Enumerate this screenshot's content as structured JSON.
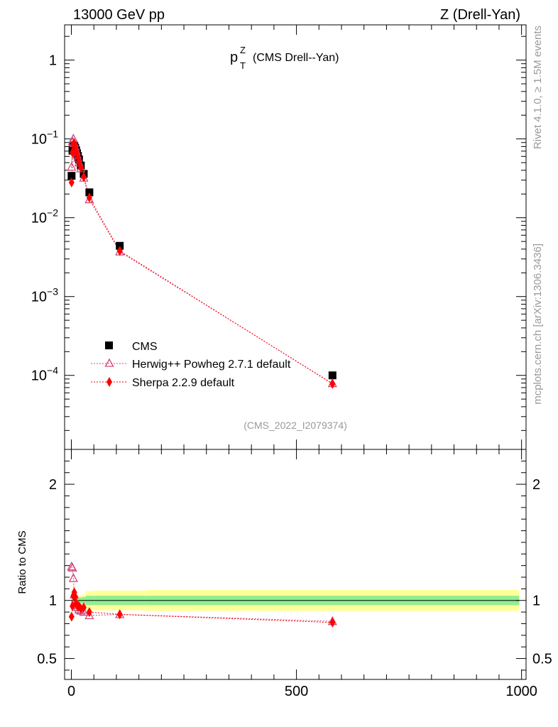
{
  "header": {
    "left": "13000 GeV pp",
    "right": "Z (Drell-Yan)"
  },
  "side_labels": {
    "rivet": "Rivet 4.1.0, ≥ 1.5M events",
    "source": "mcplots.cern.ch [arXiv:1306.3436]"
  },
  "chart_data": [
    {
      "type": "line",
      "panel": "main",
      "title_main": "p",
      "title_sup": "Z",
      "title_sub": "T",
      "title_rest": "(CMS Drell--Yan)",
      "watermark": "(CMS_2022_I2079374)",
      "yscale": "log",
      "ylim": [
        1.15e-05,
        2.8
      ],
      "xlim": [
        -15,
        1010
      ],
      "ytick_labels": [
        {
          "value": 1,
          "base": "1",
          "exp": ""
        },
        {
          "value": 0.1,
          "base": "10",
          "exp": "−1"
        },
        {
          "value": 0.01,
          "base": "10",
          "exp": "−2"
        },
        {
          "value": 0.001,
          "base": "10",
          "exp": "−3"
        },
        {
          "value": 0.0001,
          "base": "10",
          "exp": "−4"
        }
      ],
      "legend": {
        "placement": "lower-left",
        "entries": [
          "CMS",
          "Herwig++ Powheg 2.7.1 default",
          "Sherpa 2.2.9 default"
        ]
      },
      "series": [
        {
          "name": "CMS",
          "color": "#000000",
          "marker": "square",
          "x": [
            0.5,
            2.5,
            4.5,
            6.5,
            8.5,
            10.5,
            12.5,
            14.5,
            17.0,
            21.0,
            27.5,
            40.0,
            107.5,
            580.0
          ],
          "y": [
            0.034,
            0.071,
            0.083,
            0.082,
            0.077,
            0.072,
            0.066,
            0.061,
            0.055,
            0.046,
            0.036,
            0.021,
            0.0044,
            0.0001
          ]
        },
        {
          "name": "Herwig++ Powheg 2.7.1 default",
          "color": "#d0457a",
          "marker": "triangle-open",
          "x": [
            0.5,
            2.5,
            4.5,
            6.5,
            8.5,
            10.5,
            12.5,
            14.5,
            17.0,
            21.0,
            27.5,
            40.0,
            107.5,
            580.0
          ],
          "y": [
            0.044,
            0.092,
            0.1,
            0.088,
            0.078,
            0.07,
            0.063,
            0.057,
            0.05,
            0.042,
            0.032,
            0.017,
            0.0037,
            7.9e-05
          ]
        },
        {
          "name": "Sherpa 2.2.9 default",
          "color": "#ff0000",
          "marker": "diamond-filled",
          "x": [
            0.5,
            2.5,
            4.5,
            6.5,
            8.5,
            10.5,
            12.5,
            14.5,
            17.0,
            21.0,
            27.5,
            40.0,
            107.5,
            580.0
          ],
          "y": [
            0.028,
            0.067,
            0.086,
            0.087,
            0.08,
            0.07,
            0.063,
            0.058,
            0.052,
            0.043,
            0.033,
            0.018,
            0.0038,
            7.8e-05
          ]
        }
      ]
    },
    {
      "type": "line",
      "panel": "ratio",
      "ylabel": "Ratio to CMS",
      "ylim": [
        0.32,
        2.3
      ],
      "xlim": [
        -15,
        1010
      ],
      "yticks": [
        0.5,
        1,
        2
      ],
      "ytick_labels": [
        "0.5",
        "1",
        "2"
      ],
      "xticks": [
        0,
        500,
        1000
      ],
      "xtick_labels": [
        "0",
        "500",
        "1000"
      ],
      "reference": 1,
      "bands": {
        "edges": [
          0,
          1,
          3,
          5,
          7,
          9,
          11,
          13,
          15,
          18,
          24,
          32,
          50,
          165,
          995
        ],
        "inner": [
          0.03,
          0.025,
          0.02,
          0.02,
          0.02,
          0.02,
          0.02,
          0.02,
          0.025,
          0.025,
          0.03,
          0.04,
          0.04,
          0.04
        ],
        "outer": [
          0.04,
          0.035,
          0.03,
          0.03,
          0.03,
          0.03,
          0.035,
          0.035,
          0.04,
          0.045,
          0.05,
          0.08,
          0.085,
          0.09
        ],
        "inner_color": "#90ee90",
        "outer_color": "#ffff99"
      },
      "series": [
        {
          "name": "Herwig++ Powheg 2.7.1 default",
          "color": "#d0457a",
          "marker": "triangle-open",
          "x": [
            0.5,
            2.5,
            4.5,
            6.5,
            8.5,
            10.5,
            12.5,
            14.5,
            17.0,
            21.0,
            27.5,
            40.0,
            107.5,
            580.0
          ],
          "y": [
            1.29,
            1.28,
            1.19,
            1.05,
            1.0,
            0.98,
            0.96,
            0.94,
            0.92,
            0.91,
            0.9,
            0.87,
            0.88,
            0.82
          ]
        },
        {
          "name": "Sherpa 2.2.9 default",
          "color": "#ff0000",
          "marker": "diamond-filled",
          "x": [
            0.5,
            2.5,
            4.5,
            6.5,
            8.5,
            10.5,
            12.5,
            14.5,
            17.0,
            21.0,
            27.5,
            40.0,
            107.5,
            580.0
          ],
          "y": [
            0.86,
            0.95,
            1.04,
            1.07,
            1.03,
            0.97,
            0.96,
            0.95,
            0.95,
            0.93,
            0.94,
            0.9,
            0.88,
            0.81
          ]
        }
      ]
    }
  ]
}
